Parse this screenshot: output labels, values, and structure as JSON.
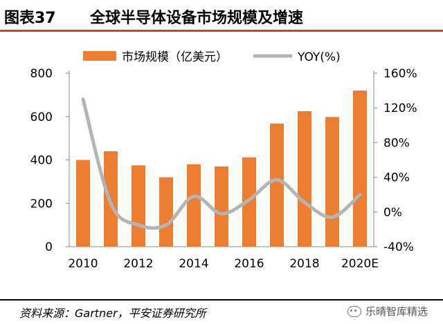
{
  "header": {
    "label": "图表37",
    "title": "全球半导体设备市场规模及增速"
  },
  "footer": {
    "source": "资料来源：Gartner，平安证券研究所",
    "watermark": "乐晴智库精选",
    "watermark_icon": "wechat-icon"
  },
  "colors": {
    "bar": "#ed7d31",
    "line": "#b4b4b4",
    "header_rule": "#c8471a"
  },
  "chart_data": {
    "type": "bar",
    "categories": [
      "2010",
      "2011",
      "2012",
      "2013",
      "2014",
      "2015",
      "2016",
      "2017",
      "2018",
      "2019",
      "2020E"
    ],
    "x_tick_labels": [
      "2010",
      "2012",
      "2014",
      "2016",
      "2018",
      "2020E"
    ],
    "series": [
      {
        "name": "市场规模（亿美元）",
        "type": "bar",
        "axis": "left",
        "values": [
          400,
          440,
          375,
          320,
          380,
          370,
          412,
          568,
          625,
          598,
          720
        ]
      },
      {
        "name": "YOY(%)",
        "type": "line",
        "axis": "right",
        "values": [
          130,
          10,
          -15,
          -15,
          18,
          -2,
          14,
          37,
          11,
          -6,
          20
        ]
      }
    ],
    "y_left": {
      "min": 0,
      "max": 800,
      "ticks": [
        0,
        200,
        400,
        600,
        800
      ]
    },
    "y_right": {
      "min": -40,
      "max": 160,
      "ticks": [
        "-40%",
        "0%",
        "40%",
        "80%",
        "120%",
        "160%"
      ]
    },
    "legend": {
      "position": "top",
      "items": [
        "市场规模（亿美元）",
        "YOY(%)"
      ]
    },
    "grid": false
  }
}
